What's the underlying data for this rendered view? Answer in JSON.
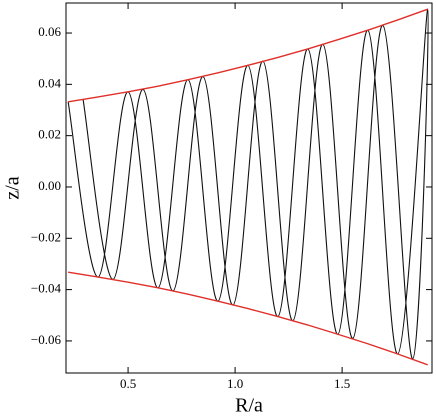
{
  "chart_data": {
    "type": "line",
    "xlabel": "R/a",
    "ylabel": "z/a",
    "xlim": [
      0.21,
      1.92
    ],
    "ylim": [
      -0.0725,
      0.0717
    ],
    "xticks": [
      0.5,
      {
        "value": 1,
        "label": "1.0"
      },
      1.5
    ],
    "yticks": [
      {
        "value": -0.06,
        "label": "−0.06"
      },
      {
        "value": -0.04,
        "label": "−0.04"
      },
      {
        "value": -0.02,
        "label": "−0.02"
      },
      {
        "value": 0,
        "label": "0.00"
      },
      0.02,
      0.04,
      0.06
    ],
    "series": [
      {
        "color": "#111111",
        "smooth": true,
        "x": [
          0.22,
          0.36,
          0.5,
          0.64,
          0.78,
          0.92,
          1.06,
          1.2,
          1.34,
          1.48,
          1.62,
          1.76,
          1.9,
          1.83,
          1.69,
          1.55,
          1.41,
          1.27,
          1.13,
          0.99,
          0.85,
          0.71,
          0.57,
          0.43,
          0.29
        ],
        "values": [
          0.0332,
          -0.0351,
          0.0371,
          -0.0393,
          0.0418,
          -0.0445,
          0.0474,
          -0.0505,
          0.0538,
          -0.0574,
          0.0611,
          -0.0651,
          0.0693,
          -0.067,
          0.063,
          -0.059,
          0.0556,
          -0.0521,
          0.049,
          -0.046,
          0.043,
          -0.0405,
          0.038,
          -0.036,
          0.034
        ]
      },
      {
        "color": "#e0302a",
        "smooth": false,
        "x": [
          0.22,
          0.36,
          0.5,
          0.64,
          0.78,
          0.92,
          1.06,
          1.2,
          1.34,
          1.48,
          1.62,
          1.76,
          1.9
        ],
        "values": [
          0.0332,
          0.0351,
          0.0371,
          0.0393,
          0.0418,
          0.0445,
          0.0474,
          0.0505,
          0.0538,
          0.0574,
          0.0611,
          0.0651,
          0.0693
        ]
      },
      {
        "color": "#e0302a",
        "smooth": false,
        "x": [
          0.22,
          0.36,
          0.5,
          0.64,
          0.78,
          0.92,
          1.06,
          1.2,
          1.34,
          1.48,
          1.62,
          1.76,
          1.9
        ],
        "values": [
          -0.0332,
          -0.0351,
          -0.0371,
          -0.0393,
          -0.0418,
          -0.0445,
          -0.0474,
          -0.0505,
          -0.0538,
          -0.0574,
          -0.0611,
          -0.0651,
          -0.0693
        ]
      }
    ]
  }
}
